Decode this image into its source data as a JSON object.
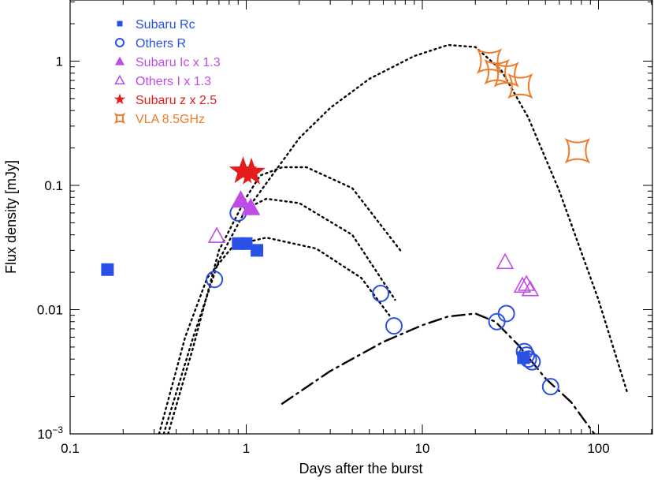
{
  "chart_data": {
    "type": "scatter",
    "title": "",
    "xlabel": "Days after the burst",
    "ylabel": "Flux density [mJy]",
    "xscale": "log",
    "yscale": "log",
    "xlim": [
      0.1,
      300
    ],
    "ylim": [
      0.001,
      3
    ],
    "grid": false,
    "legend_position": "top-left",
    "x_ticks": [
      {
        "value": 0.1,
        "label": "0.1"
      },
      {
        "value": 1,
        "label": "1"
      },
      {
        "value": 10,
        "label": "10"
      },
      {
        "value": 100,
        "label": "100"
      }
    ],
    "y_ticks": [
      {
        "value": 0.001,
        "base": "10",
        "exp": "−3"
      },
      {
        "value": 0.01,
        "label": "0.01"
      },
      {
        "value": 0.1,
        "label": "0.1"
      },
      {
        "value": 1,
        "label": "1"
      }
    ],
    "series": [
      {
        "name": "Subaru Rc",
        "marker": "filled-square",
        "color": "#2b50e6",
        "points": [
          [
            0.163,
            0.021
          ],
          [
            0.9,
            0.034
          ],
          [
            1.0,
            0.034
          ],
          [
            1.15,
            0.03
          ],
          [
            37.5,
            0.0041
          ]
        ]
      },
      {
        "name": "Others R",
        "marker": "open-circle",
        "color": "#2b50e6",
        "points": [
          [
            0.66,
            0.0175
          ],
          [
            0.9,
            0.06
          ],
          [
            5.8,
            0.0135
          ],
          [
            6.9,
            0.0074
          ],
          [
            26.5,
            0.008
          ],
          [
            30,
            0.0093
          ],
          [
            38,
            0.0046
          ],
          [
            39,
            0.0043
          ],
          [
            40,
            0.004
          ],
          [
            42,
            0.0038
          ],
          [
            53.5,
            0.0024
          ]
        ]
      },
      {
        "name": "Subaru Ic x 1.3",
        "marker": "filled-triangle",
        "color": "#c04ce6",
        "points": [
          [
            0.93,
            0.076
          ],
          [
            1.06,
            0.066
          ]
        ]
      },
      {
        "name": "Others I  x 1.3",
        "marker": "open-triangle",
        "color": "#c04ce6",
        "points": [
          [
            0.68,
            0.039
          ],
          [
            29.5,
            0.024
          ],
          [
            37,
            0.0155
          ],
          [
            39,
            0.016
          ],
          [
            41,
            0.0145
          ]
        ]
      },
      {
        "name": "Subaru z x 2.5",
        "marker": "filled-star",
        "color": "#e51c1c",
        "points": [
          [
            0.96,
            0.13
          ],
          [
            1.07,
            0.127
          ]
        ]
      },
      {
        "name": "VLA 8.5GHz",
        "marker": "open-astroid",
        "color": "#f07a2a",
        "points": [
          [
            24,
            1.0
          ],
          [
            26.5,
            0.82
          ],
          [
            30,
            0.78
          ],
          [
            36,
            0.63
          ],
          [
            76,
            0.19
          ]
        ]
      }
    ],
    "model_curves": [
      {
        "name": "model-curve-1",
        "style": "dotted",
        "color": "#000000",
        "points": [
          [
            0.36,
            0.001
          ],
          [
            0.5,
            0.005
          ],
          [
            0.7,
            0.03
          ],
          [
            1.0,
            0.08
          ],
          [
            1.2,
            0.12
          ],
          [
            1.6,
            0.14
          ],
          [
            2.2,
            0.14
          ],
          [
            4,
            0.095
          ],
          [
            7.5,
            0.03
          ]
        ]
      },
      {
        "name": "model-curve-2",
        "style": "dotted",
        "color": "#000000",
        "points": [
          [
            0.34,
            0.001
          ],
          [
            0.5,
            0.006
          ],
          [
            0.7,
            0.025
          ],
          [
            1.0,
            0.065
          ],
          [
            1.3,
            0.078
          ],
          [
            2,
            0.072
          ],
          [
            4,
            0.04
          ],
          [
            7,
            0.012
          ]
        ]
      },
      {
        "name": "model-curve-3",
        "style": "dotted",
        "color": "#000000",
        "points": [
          [
            0.32,
            0.001
          ],
          [
            0.45,
            0.006
          ],
          [
            0.6,
            0.018
          ],
          [
            0.85,
            0.033
          ],
          [
            1.3,
            0.038
          ],
          [
            2.5,
            0.031
          ],
          [
            4.5,
            0.018
          ],
          [
            6.5,
            0.009
          ]
        ]
      },
      {
        "name": "model-curve-4",
        "style": "dotted",
        "color": "#000000",
        "points": [
          [
            0.98,
            0.06
          ],
          [
            1.4,
            0.12
          ],
          [
            2,
            0.24
          ],
          [
            3,
            0.42
          ],
          [
            5,
            0.72
          ],
          [
            9,
            1.1
          ],
          [
            14,
            1.35
          ],
          [
            20,
            1.3
          ],
          [
            28,
            0.85
          ],
          [
            40,
            0.35
          ],
          [
            60,
            0.09
          ],
          [
            100,
            0.012
          ],
          [
            145,
            0.0022
          ]
        ]
      },
      {
        "name": "model-curve-5",
        "style": "dash-dot",
        "color": "#000000",
        "points": [
          [
            1.6,
            0.00175
          ],
          [
            3,
            0.0032
          ],
          [
            6,
            0.0055
          ],
          [
            10,
            0.0075
          ],
          [
            14,
            0.0088
          ],
          [
            20,
            0.0093
          ],
          [
            26,
            0.008
          ],
          [
            35,
            0.0052
          ],
          [
            50,
            0.0028
          ],
          [
            70,
            0.0018
          ],
          [
            100,
            0.0009
          ]
        ]
      }
    ]
  }
}
